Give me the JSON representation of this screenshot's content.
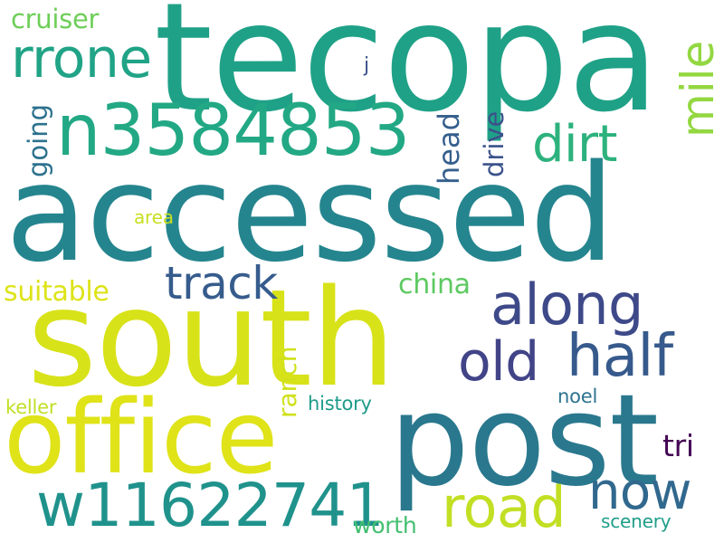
{
  "words": {
    "tecopa": "tecopa",
    "accessed": "accessed",
    "south": "south",
    "post": "post",
    "office": "office",
    "n3584853": "n3584853",
    "w11622741": "w11622741",
    "rrone": "rrone",
    "cruiser": "cruiser",
    "dirt": "dirt",
    "mile": "mile",
    "j": "j",
    "going": "going",
    "head": "head",
    "drive": "drive",
    "area": "area",
    "track": "track",
    "along": "along",
    "suitable": "suitable",
    "china": "china",
    "old": "old",
    "half": "half",
    "ranch": "ranch",
    "keller": "keller",
    "history": "history",
    "noel": "noel",
    "tri": "tri",
    "road": "road",
    "now": "now",
    "worth": "worth",
    "scenery": "scenery"
  },
  "colors": {
    "background": "#ffffff",
    "palette": [
      "#440154",
      "#3b528b",
      "#21918c",
      "#5ec962",
      "#fde725"
    ]
  }
}
